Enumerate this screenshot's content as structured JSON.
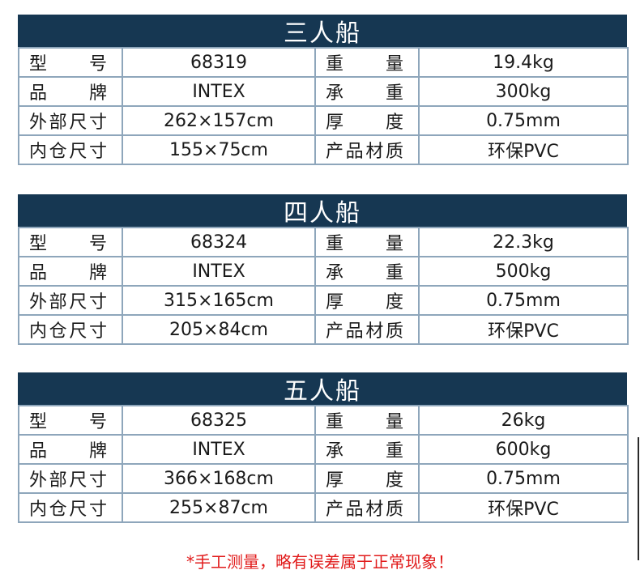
{
  "blocks": [
    {
      "title": "三人船",
      "rows": [
        [
          "型　　号",
          "68319",
          "重　　量",
          "19.4kg"
        ],
        [
          "品　　牌",
          "INTEX",
          "承　　重",
          "300kg"
        ],
        [
          "外部尺寸",
          "262×157cm",
          "厚　　度",
          "0.75mm"
        ],
        [
          "内仓尺寸",
          "155×75cm",
          "产品材质",
          "环保PVC"
        ]
      ]
    },
    {
      "title": "四人船",
      "rows": [
        [
          "型　　号",
          "68324",
          "重　　量",
          "22.3kg"
        ],
        [
          "品　　牌",
          "INTEX",
          "承　　重",
          "500kg"
        ],
        [
          "外部尺寸",
          "315×165cm",
          "厚　　度",
          "0.75mm"
        ],
        [
          "内仓尺寸",
          "205×84cm",
          "产品材质",
          "环保PVC"
        ]
      ]
    },
    {
      "title": "五人船",
      "rows": [
        [
          "型　　号",
          "68325",
          "重　　量",
          "26kg"
        ],
        [
          "品　　牌",
          "INTEX",
          "承　　重",
          "600kg"
        ],
        [
          "外部尺寸",
          "366×168cm",
          "厚　　度",
          "0.75mm"
        ],
        [
          "内仓尺寸",
          "255×87cm",
          "产品材质",
          "环保PVC"
        ]
      ]
    }
  ],
  "note": "*手工测量，略有误差属于正常现象！"
}
